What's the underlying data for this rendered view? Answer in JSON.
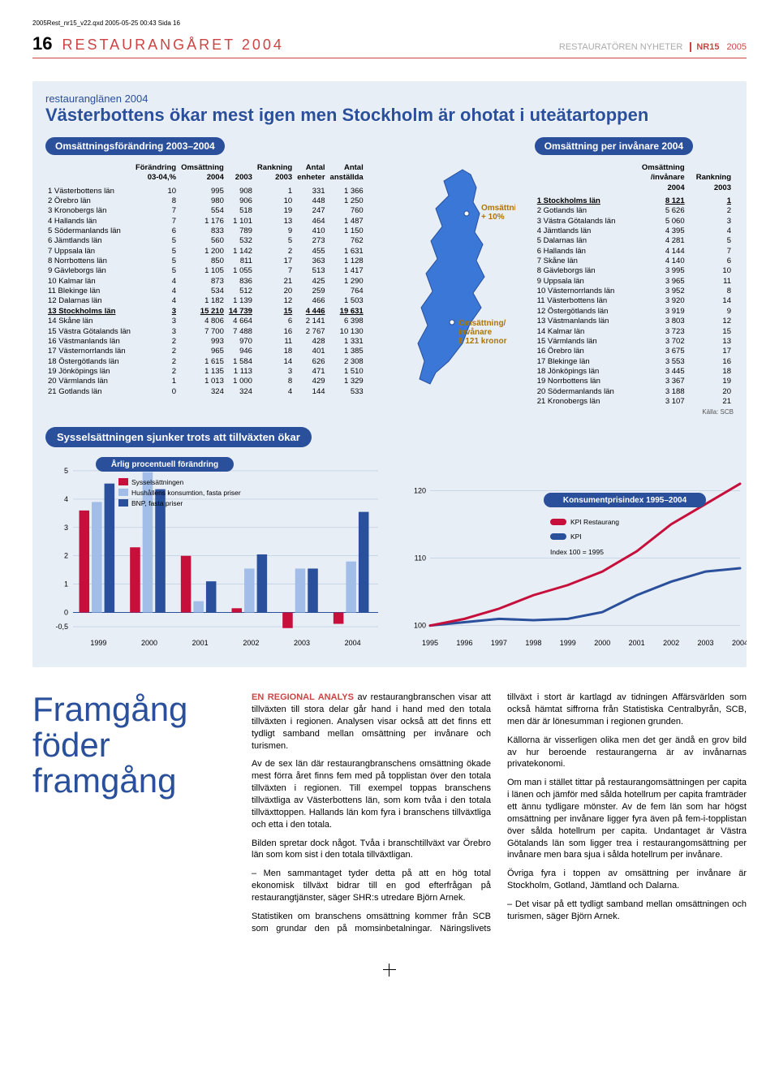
{
  "meta": {
    "file_line": "2005Rest_nr15_v22.qxd  2005-05-25  00:43  Sida 16"
  },
  "header": {
    "page_num": "16",
    "section": "RESTAURANGÅRET 2004",
    "right_grey": "RESTAURATÖREN NYHETER",
    "right_issue": "NR15",
    "right_year": "2005"
  },
  "panel": {
    "kicker": "restauranglänen 2004",
    "title": "Västerbottens ökar mest igen men Stockholm är ohotat i uteätartoppen",
    "pill_left": "Omsättningsförändring 2003–2004",
    "pill_right": "Omsättning per invånare 2004",
    "left_headers": [
      "",
      "Förändring 03-04,%",
      "Omsättning 2004",
      "Rankning 2003",
      "Antal 2003 enheter",
      "Antal anställda",
      ""
    ],
    "left_rows": [
      [
        "1 Västerbottens län",
        "10",
        "995",
        "908",
        "1",
        "331",
        "1 366"
      ],
      [
        "2 Örebro län",
        "8",
        "980",
        "906",
        "10",
        "448",
        "1 250"
      ],
      [
        "3 Kronobergs län",
        "7",
        "554",
        "518",
        "19",
        "247",
        "760"
      ],
      [
        "4 Hallands län",
        "7",
        "1 176",
        "1 101",
        "13",
        "464",
        "1 487"
      ],
      [
        "5 Södermanlands län",
        "6",
        "833",
        "789",
        "9",
        "410",
        "1 150"
      ],
      [
        "6 Jämtlands län",
        "5",
        "560",
        "532",
        "5",
        "273",
        "762"
      ],
      [
        "7 Uppsala län",
        "5",
        "1 200",
        "1 142",
        "2",
        "455",
        "1 631"
      ],
      [
        "8 Norrbottens län",
        "5",
        "850",
        "811",
        "17",
        "363",
        "1 128"
      ],
      [
        "9 Gävleborgs län",
        "5",
        "1 105",
        "1 055",
        "7",
        "513",
        "1 417"
      ],
      [
        "10 Kalmar län",
        "4",
        "873",
        "836",
        "21",
        "425",
        "1 290"
      ],
      [
        "11 Blekinge län",
        "4",
        "534",
        "512",
        "20",
        "259",
        "764"
      ],
      [
        "12 Dalarnas län",
        "4",
        "1 182",
        "1 139",
        "12",
        "466",
        "1 503"
      ],
      [
        "13 Stockholms län",
        "3",
        "15 210",
        "14 739",
        "15",
        "4 446",
        "19 631"
      ],
      [
        "14 Skåne län",
        "3",
        "4 806",
        "4 664",
        "6",
        "2 141",
        "6 398"
      ],
      [
        "15 Västra Götalands län",
        "3",
        "7 700",
        "7 488",
        "16",
        "2 767",
        "10 130"
      ],
      [
        "16 Västmanlands län",
        "2",
        "993",
        "970",
        "11",
        "428",
        "1 331"
      ],
      [
        "17 Västernorrlands län",
        "2",
        "965",
        "946",
        "18",
        "401",
        "1 385"
      ],
      [
        "18 Östergötlands län",
        "2",
        "1 615",
        "1 584",
        "14",
        "626",
        "2 308"
      ],
      [
        "19 Jönköpings län",
        "2",
        "1 135",
        "1 113",
        "3",
        "471",
        "1 510"
      ],
      [
        "20 Värmlands län",
        "1",
        "1 013",
        "1 000",
        "8",
        "429",
        "1 329"
      ],
      [
        "21 Gotlands län",
        "0",
        "324",
        "324",
        "4",
        "144",
        "533"
      ]
    ],
    "left_hl_index": 12,
    "right_headers": [
      "",
      "Omsättning /invånare 2004",
      "Rankning 2003"
    ],
    "right_rows": [
      [
        "1 Stockholms län",
        "8 121",
        "1"
      ],
      [
        "2 Gotlands län",
        "5 626",
        "2"
      ],
      [
        "3 Västra Götalands län",
        "5 060",
        "3"
      ],
      [
        "4 Jämtlands län",
        "4 395",
        "4"
      ],
      [
        "5 Dalarnas län",
        "4 281",
        "5"
      ],
      [
        "6 Hallands län",
        "4 144",
        "7"
      ],
      [
        "7 Skåne län",
        "4 140",
        "6"
      ],
      [
        "8 Gävleborgs län",
        "3 995",
        "10"
      ],
      [
        "9 Uppsala län",
        "3 965",
        "11"
      ],
      [
        "10 Västernorrlands län",
        "3 952",
        "8"
      ],
      [
        "11 Västerbottens län",
        "3 920",
        "14"
      ],
      [
        "12 Östergötlands län",
        "3 919",
        "9"
      ],
      [
        "13 Västmanlands län",
        "3 803",
        "12"
      ],
      [
        "14 Kalmar län",
        "3 723",
        "15"
      ],
      [
        "15 Värmlands län",
        "3 702",
        "13"
      ],
      [
        "16 Örebro län",
        "3 675",
        "17"
      ],
      [
        "17 Blekinge län",
        "3 553",
        "16"
      ],
      [
        "18 Jönköpings län",
        "3 445",
        "18"
      ],
      [
        "19 Norrbottens län",
        "3 367",
        "19"
      ],
      [
        "20 Södermanlands län",
        "3 188",
        "20"
      ],
      [
        "21 Kronobergs län",
        "3 107",
        "21"
      ]
    ],
    "map": {
      "label1a": "Omsättning",
      "label1b": "+ 10%",
      "label2a": "Omsättning/",
      "label2b": "invånare",
      "label2c": "8 121 kronor",
      "fill": "#3a77d6",
      "stroke": "#2a4f9b"
    },
    "source": "Källa: SCB",
    "sub_pill": "Sysselsättningen sjunker trots att tillväxten ökar",
    "bar_chart": {
      "title": "Årlig procentuell förändring",
      "y_ticks": [
        "5",
        "4",
        "3",
        "2",
        "1",
        "0",
        "-0,5"
      ],
      "x_labels": [
        "1999",
        "2000",
        "2001",
        "2002",
        "2003",
        "2004"
      ],
      "legend": [
        {
          "label": "Sysselsättningen",
          "color": "#c60f3a"
        },
        {
          "label": "Hushållens konsumtion, fasta priser",
          "color": "#a1bde8"
        },
        {
          "label": "BNP, fasta priser",
          "color": "#2a4f9b"
        }
      ],
      "series": {
        "syss": [
          3.6,
          2.3,
          2.0,
          0.15,
          -0.55,
          -0.4
        ],
        "hush": [
          3.9,
          4.95,
          0.4,
          1.55,
          1.55,
          1.8
        ],
        "bnp": [
          4.55,
          4.35,
          1.1,
          2.05,
          1.55,
          3.55
        ]
      },
      "ymin": -0.7,
      "ymax": 5.2,
      "colors": {
        "syss": "#c60f3a",
        "hush": "#a1bde8",
        "bnp": "#2a4f9b"
      }
    },
    "line_chart": {
      "title": "Konsumentprisindex 1995–2004",
      "y_ticks": [
        "120",
        "110",
        "100"
      ],
      "x_labels": [
        "1995",
        "1996",
        "1997",
        "1998",
        "1999",
        "2000",
        "2001",
        "2002",
        "2003",
        "2004"
      ],
      "legend": [
        {
          "label": "KPI Restaurang",
          "color": "#c60f3a"
        },
        {
          "label": "KPI",
          "color": "#2a4f9b"
        }
      ],
      "index_note": "Index 100 = 1995",
      "ymin": 99,
      "ymax": 124,
      "series": {
        "rest": [
          100,
          101,
          102.5,
          104.5,
          106,
          108,
          111,
          115,
          118,
          121
        ],
        "kpi": [
          100,
          100.5,
          101,
          100.8,
          101,
          102,
          104.5,
          106.5,
          108,
          108.5
        ]
      }
    }
  },
  "article": {
    "title": "Framgång föder framgång",
    "body": [
      "<span class='lead'>EN REGIONAL ANALYS</span> av restaurangbranschen visar att tillväxten till stora delar går hand i hand med den totala tillväxten i regionen. Analysen visar också att det finns ett tydligt samband mellan omsättning per invånare och turismen.",
      "Av de sex län där restaurangbranschens omsättning ökade mest förra året finns fem med på topplistan över den totala tillväxten i regionen. Till exempel toppas branschens tillväxtliga av Västerbottens län, som kom tvåa i den totala tillväxttoppen. Hallands län kom fyra i branschens tillväxtliga och etta i den totala.",
      "Bilden spretar dock något. Tvåa i branschtillväxt var Örebro län som kom sist i den totala tillväxtligan.",
      "– Men sammantaget tyder detta på att en hög total ekonomisk tillväxt bidrar till en god efterfrågan på restaurangtjänster, säger SHR:s utredare Björn Arnek.",
      "Statistiken om branschens omsättning kommer från SCB som grundar den på momsinbetalningar. Näringslivets tillväxt i stort är kartlagd av tidningen Affärsvärlden som också hämtat siffrorna från Statistiska Centralbyrån, SCB, men där är lönesumman i regionen grunden.",
      "Källorna är visserligen olika men det ger ändå en grov bild av hur beroende restaurangerna är av invånarnas privatekonomi.",
      "Om man i stället tittar på restaurangomsättningen per capita i länen och jämför med sålda hotellrum per capita framträder ett ännu tydligare mönster. Av de fem län som har högst omsättning per invånare ligger fyra även på fem-i-topplistan över sålda hotellrum per capita. Undantaget är Västra Götalands län som ligger trea i restaurangomsättning per invånare men bara sjua i sålda hotellrum per invånare.",
      "Övriga fyra i toppen av omsättning per invånare är Stockholm, Gotland, Jämtland och Dalarna.",
      "– Det visar på ett tydligt samband mellan omsättningen och turismen, säger Björn Arnek."
    ]
  }
}
